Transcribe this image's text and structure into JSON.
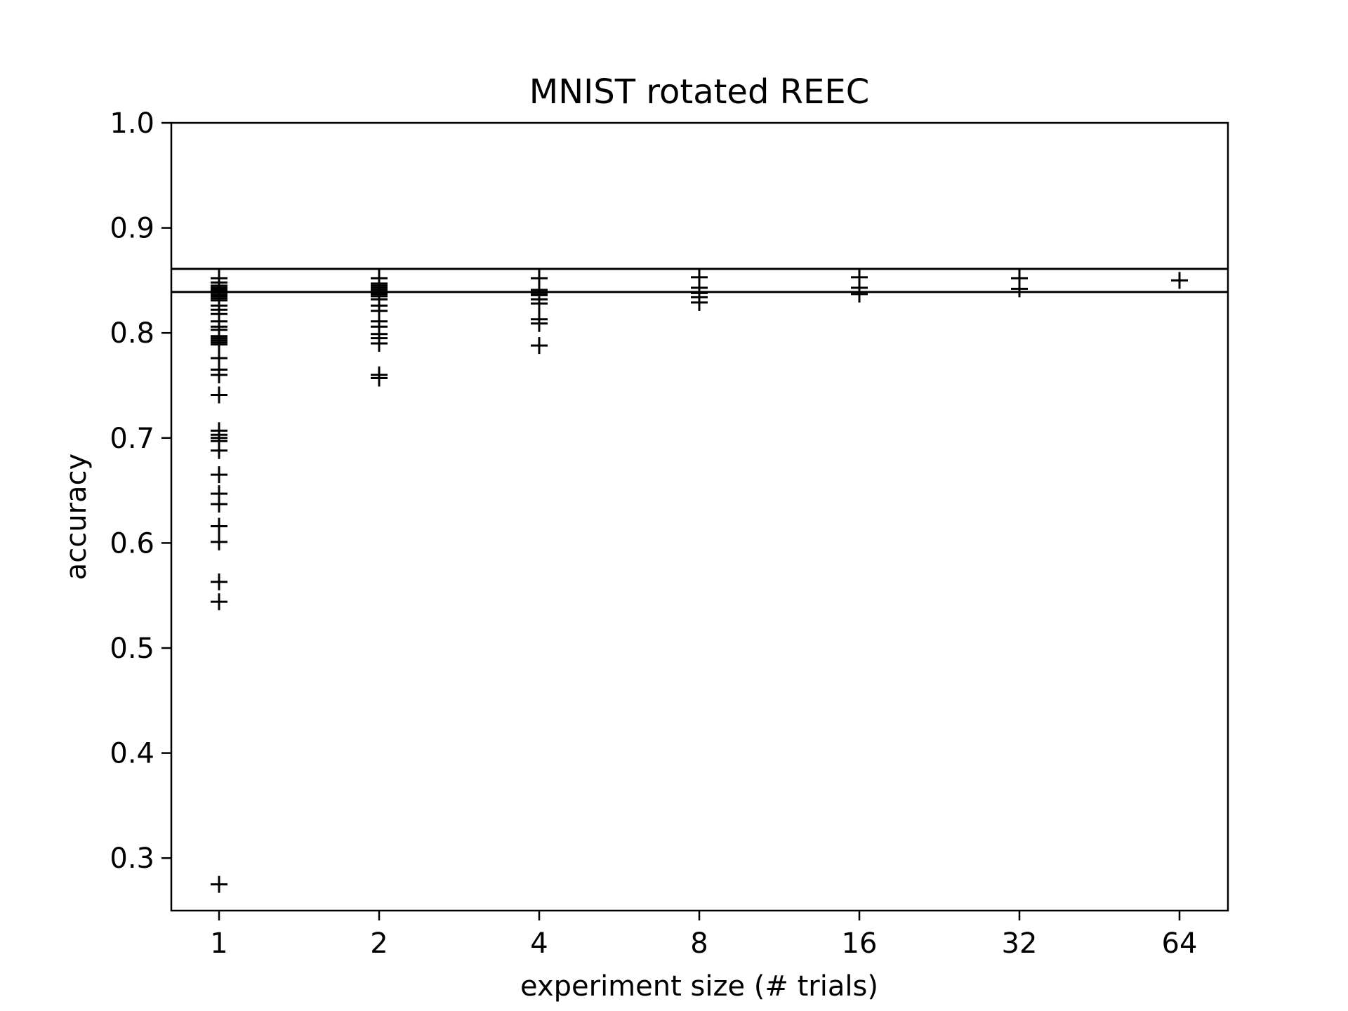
{
  "chart_data": {
    "type": "scatter",
    "title": "MNIST rotated REEC",
    "xlabel": "experiment size (# trials)",
    "ylabel": "accuracy",
    "ylim": [
      0.25,
      1.0
    ],
    "yticks": [
      "0.3",
      "0.4",
      "0.5",
      "0.6",
      "0.7",
      "0.8",
      "0.9",
      "1.0"
    ],
    "xticks": [
      "1",
      "2",
      "4",
      "8",
      "16",
      "32",
      "64"
    ],
    "marker": "plus",
    "marker_color": "#000000",
    "grid": false,
    "hlines": [
      0.861,
      0.839
    ],
    "series": [
      {
        "values": [
          {
            "x": "1",
            "y": [
              0.852,
              0.848,
              0.845,
              0.843,
              0.842,
              0.841,
              0.84,
              0.839,
              0.838,
              0.836,
              0.835,
              0.833,
              0.831,
              0.826,
              0.822,
              0.818,
              0.811,
              0.806,
              0.803,
              0.797,
              0.795,
              0.793,
              0.791,
              0.789,
              0.776,
              0.765,
              0.76,
              0.741,
              0.707,
              0.703,
              0.7,
              0.697,
              0.688,
              0.665,
              0.647,
              0.637,
              0.616,
              0.601,
              0.563,
              0.544,
              0.275
            ]
          },
          {
            "x": "2",
            "y": [
              0.852,
              0.847,
              0.845,
              0.843,
              0.841,
              0.839,
              0.837,
              0.835,
              0.832,
              0.826,
              0.821,
              0.811,
              0.806,
              0.799,
              0.795,
              0.79,
              0.76,
              0.757
            ]
          },
          {
            "x": "4",
            "y": [
              0.852,
              0.841,
              0.838,
              0.836,
              0.832,
              0.828,
              0.813,
              0.809,
              0.788
            ]
          },
          {
            "x": "8",
            "y": [
              0.853,
              0.843,
              0.838,
              0.834,
              0.829
            ]
          },
          {
            "x": "16",
            "y": [
              0.853,
              0.843,
              0.837
            ]
          },
          {
            "x": "32",
            "y": [
              0.852,
              0.842
            ]
          },
          {
            "x": "64",
            "y": [
              0.85
            ]
          }
        ]
      }
    ]
  }
}
